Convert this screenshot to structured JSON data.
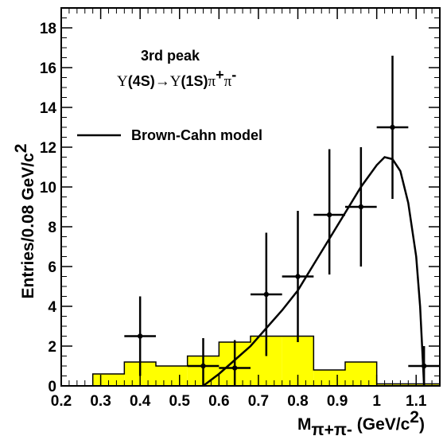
{
  "chart_data": {
    "type": "histogram-with-points",
    "title": "3rd peak",
    "subtitle": {
      "upsilon": "Υ",
      "parent_state": "(4S)",
      "arrow": "→",
      "daughter_state": "(1S)",
      "pion": "π",
      "plus": "+",
      "minus": "-"
    },
    "xlabel": {
      "main": "M",
      "sub": "π+π-",
      "unit": " (GeV/c",
      "sup": "2",
      "close": ")"
    },
    "ylabel": {
      "main": "Entries/0.08 GeV/c",
      "sup": "2"
    },
    "xlim": [
      0.2,
      1.16
    ],
    "ylim": [
      0,
      19
    ],
    "xticks": [
      0.2,
      0.3,
      0.4,
      0.5,
      0.6,
      0.7,
      0.8,
      0.9,
      1.0,
      1.1
    ],
    "xtick_labels": [
      "0.2",
      "0.3",
      "0.4",
      "0.5",
      "0.6",
      "0.7",
      "0.8",
      "0.9",
      "1",
      "1.1"
    ],
    "yticks": [
      0,
      2,
      4,
      6,
      8,
      10,
      12,
      14,
      16,
      18
    ],
    "ytick_labels": [
      "0",
      "2",
      "4",
      "6",
      "8",
      "10",
      "12",
      "14",
      "16",
      "18"
    ],
    "legend": {
      "label": "Brown-Cahn model",
      "position": "top-left"
    },
    "background_histogram": {
      "color": "#ffff00",
      "edges": [
        0.28,
        0.36,
        0.44,
        0.52,
        0.6,
        0.68,
        0.76,
        0.84,
        0.92,
        1.0,
        1.08,
        1.16
      ],
      "values": [
        0.6,
        1.2,
        1.0,
        1.5,
        2.2,
        2.5,
        2.5,
        0.8,
        1.2,
        0.1,
        0.1
      ]
    },
    "data_points": {
      "x": [
        0.4,
        0.56,
        0.64,
        0.72,
        0.8,
        0.88,
        0.96,
        1.04,
        1.12
      ],
      "y": [
        2.5,
        1.0,
        0.9,
        4.6,
        5.5,
        8.6,
        9.0,
        13.0,
        1.0
      ],
      "yerr_low": [
        2.0,
        1.0,
        0.9,
        3.1,
        3.3,
        3.0,
        3.0,
        3.6,
        1.0
      ],
      "yerr_high": [
        2.0,
        1.4,
        1.4,
        3.1,
        3.3,
        3.3,
        3.0,
        3.6,
        1.0
      ],
      "xerr": 0.04
    },
    "model_curve": {
      "x": [
        0.56,
        0.6,
        0.64,
        0.68,
        0.72,
        0.76,
        0.8,
        0.84,
        0.88,
        0.92,
        0.96,
        1.0,
        1.02,
        1.04,
        1.06,
        1.08,
        1.1,
        1.11,
        1.12
      ],
      "y": [
        0.0,
        0.6,
        1.3,
        2.0,
        2.9,
        3.8,
        4.8,
        6.1,
        7.4,
        8.7,
        10.0,
        11.1,
        11.5,
        11.4,
        10.8,
        9.2,
        6.5,
        4.0,
        0.0
      ]
    }
  }
}
